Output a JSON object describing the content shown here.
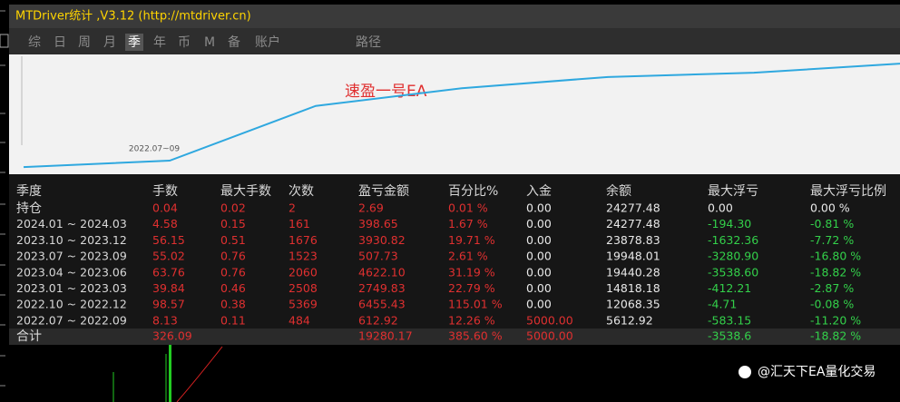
{
  "window_title": "MTDriver统计 ,V3.12 (http://mtdriver.cn)",
  "tabs": [
    "综",
    "日",
    "周",
    "月",
    "季",
    "年",
    "币",
    "M",
    "备",
    "账户",
    "路径"
  ],
  "active_tab": 4,
  "chart_data": {
    "type": "line",
    "annotation": "速盈一号EA",
    "categories": [
      null,
      "2022.07~09",
      null,
      null,
      null,
      null,
      null
    ],
    "values": [
      5000,
      6200,
      16400,
      19700,
      21800,
      22600,
      24277.48
    ],
    "ylim": [
      4000,
      26000
    ],
    "color": "#2fa8df"
  },
  "table": {
    "header": [
      "季度",
      "手数",
      "最大手数",
      "次数",
      "盈亏金额",
      "百分比%",
      "入金",
      "余额",
      "最大浮亏",
      "最大浮亏比例"
    ],
    "rows": [
      [
        "持仓",
        "0.04",
        "0.02",
        "2",
        "2.69",
        "0.01 %",
        "0.00",
        "24277.48",
        "0.00",
        "0.00 %"
      ],
      [
        "2024.01 ~ 2024.03",
        "4.58",
        "0.15",
        "161",
        "398.65",
        "1.67 %",
        "0.00",
        "24277.48",
        "-194.30",
        "-0.81 %"
      ],
      [
        "2023.10 ~ 2023.12",
        "56.15",
        "0.51",
        "1676",
        "3930.82",
        "19.71 %",
        "0.00",
        "23878.83",
        "-1632.36",
        "-7.72 %"
      ],
      [
        "2023.07 ~ 2023.09",
        "55.02",
        "0.76",
        "1523",
        "507.73",
        "2.61 %",
        "0.00",
        "19948.01",
        "-3280.90",
        "-16.80 %"
      ],
      [
        "2023.04 ~ 2023.06",
        "63.76",
        "0.76",
        "2060",
        "4622.10",
        "31.19 %",
        "0.00",
        "19440.28",
        "-3538.60",
        "-18.82 %"
      ],
      [
        "2023.01 ~ 2023.03",
        "39.84",
        "0.46",
        "2508",
        "2749.83",
        "22.79 %",
        "0.00",
        "14818.18",
        "-412.21",
        "-2.87 %"
      ],
      [
        "2022.10 ~ 2022.12",
        "98.57",
        "0.38",
        "5369",
        "6455.43",
        "115.01 %",
        "0.00",
        "12068.35",
        "-4.71",
        "-0.08 %"
      ],
      [
        "2022.07 ~ 2022.09",
        "8.13",
        "0.11",
        "484",
        "612.92",
        "12.26 %",
        "5000.00",
        "5612.92",
        "-583.15",
        "-11.20 %"
      ]
    ],
    "total": [
      "合计",
      "326.09",
      null,
      null,
      "19280.17",
      "385.60 %",
      "5000.00",
      null,
      "-3538.6",
      "-18.82 %"
    ]
  },
  "watermark": "@汇天下EA量化交易"
}
